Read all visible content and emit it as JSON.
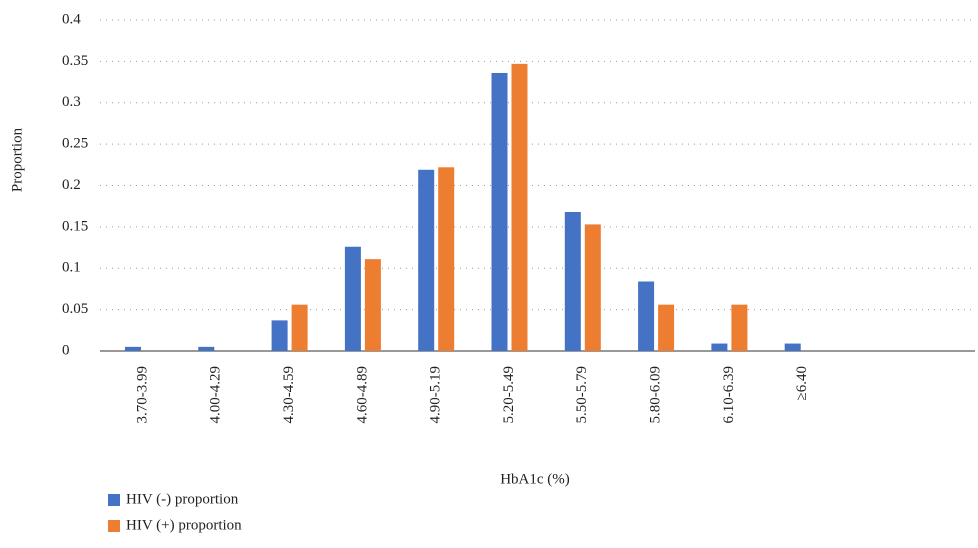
{
  "chart_data": {
    "type": "bar",
    "x_label": "HbA1c (%)",
    "y_label": "Proportion",
    "categories": [
      "3.70-3.99",
      "4.00-4.29",
      "4.30-4.59",
      "4.60-4.89",
      "4.90-5.19",
      "5.20-5.49",
      "5.50-5.79",
      "5.80-6.09",
      "6.10-6.39",
      "≥6.40"
    ],
    "series": [
      {
        "name": "HIV (-) proportion",
        "color": "#4472c4",
        "values": [
          0.005,
          0.005,
          0.037,
          0.126,
          0.219,
          0.336,
          0.168,
          0.084,
          0.009,
          0.009
        ]
      },
      {
        "name": "HIV (+) proportion",
        "color": "#ed7d31",
        "values": [
          0,
          0,
          0.056,
          0.111,
          0.222,
          0.347,
          0.153,
          0.056,
          0.056,
          0
        ]
      }
    ],
    "ylim": [
      0,
      0.4
    ],
    "yticks": [
      0,
      0.05,
      0.1,
      0.15,
      0.2,
      0.25,
      0.3,
      0.35,
      0.4
    ],
    "grid": true
  }
}
